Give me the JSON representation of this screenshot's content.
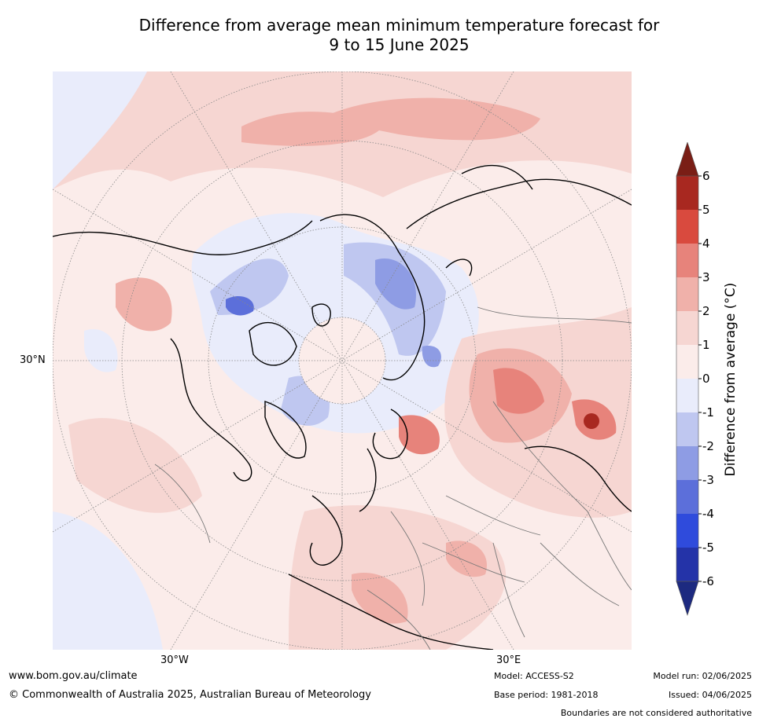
{
  "title": {
    "line1": "Difference from average mean minimum temperature forecast for",
    "line2": "9 to 15 June 2025"
  },
  "map": {
    "lat_label": "30°N",
    "lon_labels": {
      "west": "30°W",
      "east": "30°E"
    }
  },
  "legend": {
    "title": "Difference from average (°C)",
    "ticks": [
      "6",
      "5",
      "4",
      "3",
      "2",
      "1",
      "0",
      "-1",
      "-2",
      "-3",
      "-4",
      "-5",
      "-6"
    ],
    "colors_top_to_bottom": [
      "#a82820",
      "#d94a3e",
      "#e7837b",
      "#f0b1aa",
      "#f6d6d2",
      "#fbecea",
      "#e9ecfb",
      "#bfc7f0",
      "#8e9ce4",
      "#5c6fda",
      "#2f4bdc",
      "#2433a8"
    ],
    "over_color": "#7a1e16",
    "under_color": "#1d2a80"
  },
  "footer": {
    "url": "www.bom.gov.au/climate",
    "copyright": "© Commonwealth of Australia 2025, Australian Bureau of Meteorology",
    "model": "Model: ACCESS-S2",
    "base_period": "Base period: 1981-2018",
    "model_run": "Model run: 02/06/2025",
    "issued": "Issued: 04/06/2025",
    "disclaimer": "Boundaries are not considered authoritative"
  }
}
